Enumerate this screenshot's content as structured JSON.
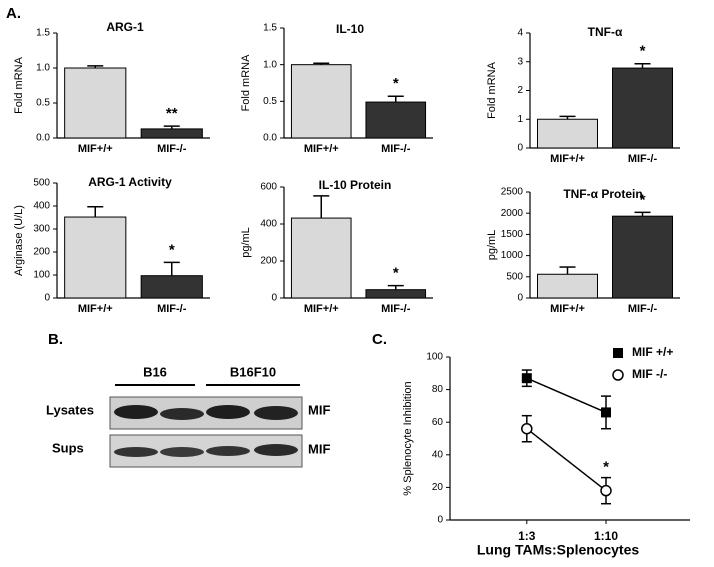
{
  "panel_labels": [
    "A.",
    "B.",
    "C."
  ],
  "blot": {
    "groups": [
      "B16",
      "B16F10"
    ],
    "rows": [
      "Lysates",
      "Sups"
    ],
    "protein": [
      "MIF",
      "MIF"
    ]
  },
  "chart_data": [
    {
      "type": "bar",
      "title": "ARG-1",
      "y_label": "Fold mRNA",
      "categories": [
        "MIF+/+",
        "MIF-/-"
      ],
      "values": [
        1.0,
        0.13
      ],
      "errors": [
        0.03,
        0.04
      ],
      "colors": [
        "#d9d9d9",
        "#333333"
      ],
      "annotation": "**",
      "ylim": [
        0,
        1.5
      ],
      "yticks": [
        {
          "value": 0,
          "label": "0.0"
        },
        0.5,
        {
          "value": 1,
          "label": "1.0"
        },
        1.5
      ]
    },
    {
      "type": "bar",
      "title": "IL-10",
      "y_label": "Fold mRNA",
      "categories": [
        "MIF+/+",
        "MIF-/-"
      ],
      "values": [
        1.0,
        0.49
      ],
      "errors": [
        0.02,
        0.08
      ],
      "colors": [
        "#d9d9d9",
        "#333333"
      ],
      "annotation": "*",
      "ylim": [
        0,
        1.5
      ],
      "yticks": [
        {
          "value": 0,
          "label": "0.0"
        },
        0.5,
        {
          "value": 1,
          "label": "1.0"
        },
        1.5
      ]
    },
    {
      "type": "bar",
      "title": "TNF-α",
      "y_label": "Fold mRNA",
      "categories": [
        "MIF+/+",
        "MIF-/-"
      ],
      "values": [
        1.0,
        2.78
      ],
      "errors": [
        0.1,
        0.15
      ],
      "colors": [
        "#d9d9d9",
        "#333333"
      ],
      "annotation": "*",
      "ylim": [
        0,
        4
      ],
      "yticks": [
        0,
        1,
        2,
        3,
        4
      ]
    },
    {
      "type": "bar",
      "title": "ARG-1 Activity",
      "y_label": "Arginase (U/L)",
      "categories": [
        "MIF+/+",
        "MIF-/-"
      ],
      "values": [
        352,
        97
      ],
      "errors": [
        45,
        58
      ],
      "colors": [
        "#d9d9d9",
        "#333333"
      ],
      "annotation": "*",
      "ylim": [
        0,
        500
      ],
      "yticks": [
        0,
        100,
        200,
        300,
        400,
        500
      ]
    },
    {
      "type": "bar",
      "title": "IL-10 Protein",
      "y_label": "pg/mL",
      "categories": [
        "MIF+/+",
        "MIF-/-"
      ],
      "values": [
        432,
        45
      ],
      "errors": [
        120,
        22
      ],
      "colors": [
        "#d9d9d9",
        "#333333"
      ],
      "annotation": "*",
      "ylim": [
        0,
        600
      ],
      "yticks": [
        0,
        200,
        400,
        600
      ]
    },
    {
      "type": "bar",
      "title": "TNF-α Protein",
      "y_label": "pg/mL",
      "categories": [
        "MIF+/+",
        "MIF-/-"
      ],
      "values": [
        560,
        1930
      ],
      "errors": [
        170,
        90
      ],
      "colors": [
        "#d9d9d9",
        "#333333"
      ],
      "annotation": "*",
      "ylim": [
        0,
        2500
      ],
      "yticks": [
        0,
        500,
        1000,
        1500,
        2000,
        2500
      ]
    },
    {
      "type": "line",
      "x_label": "Lung TAMs:Splenocytes",
      "y_label": "% Splenocyte Inhibition",
      "categories": [
        "1:3",
        "1:10"
      ],
      "series": [
        {
          "name": "MIF +/+",
          "color": "#000000",
          "marker": "square",
          "values": [
            87,
            66
          ],
          "errors": [
            5,
            10
          ]
        },
        {
          "name": "MIF -/-",
          "color": "#000000",
          "marker": "open circle",
          "values": [
            56,
            18
          ],
          "errors": [
            8,
            8
          ]
        }
      ],
      "annotation": "*",
      "legend": "upper right",
      "ylim": [
        0,
        100
      ],
      "yticks": [
        0,
        20,
        40,
        60,
        80,
        100
      ]
    }
  ]
}
